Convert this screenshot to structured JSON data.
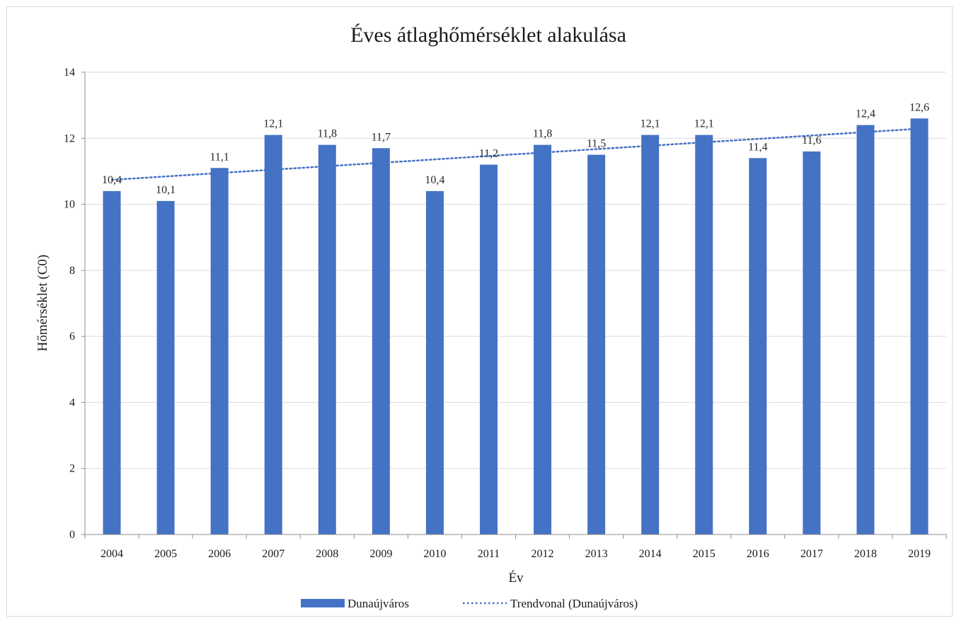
{
  "chart_data": {
    "type": "bar",
    "title": "Éves átlaghőmérséklet  alakulása",
    "xlabel": "Év",
    "ylabel": "Hőmérséklet (C0)",
    "categories": [
      "2004",
      "2005",
      "2006",
      "2007",
      "2008",
      "2009",
      "2010",
      "2011",
      "2012",
      "2013",
      "2014",
      "2015",
      "2016",
      "2017",
      "2018",
      "2019"
    ],
    "series": [
      {
        "name": "Dunaújváros",
        "values": [
          10.4,
          10.1,
          11.1,
          12.1,
          11.8,
          11.7,
          10.4,
          11.2,
          11.8,
          11.5,
          12.1,
          12.1,
          11.4,
          11.6,
          12.4,
          12.6
        ],
        "labels": [
          "10,4",
          "10,1",
          "11,1",
          "12,1",
          "11,8",
          "11,7",
          "10,4",
          "11,2",
          "11,8",
          "11,5",
          "12,1",
          "12,1",
          "11,4",
          "11,6",
          "12,4",
          "12,6"
        ],
        "color": "#4472c4"
      }
    ],
    "trendline": {
      "name": "Trendvonal (Dunaújváros)",
      "type": "linear",
      "start": 10.74,
      "end": 12.29,
      "color": "#4472c4",
      "style": "dotted"
    },
    "ylim": [
      0,
      14
    ],
    "yticks": [
      "0",
      "2",
      "4",
      "6",
      "8",
      "10",
      "12",
      "14"
    ],
    "grid": true,
    "legend_position": "bottom"
  }
}
